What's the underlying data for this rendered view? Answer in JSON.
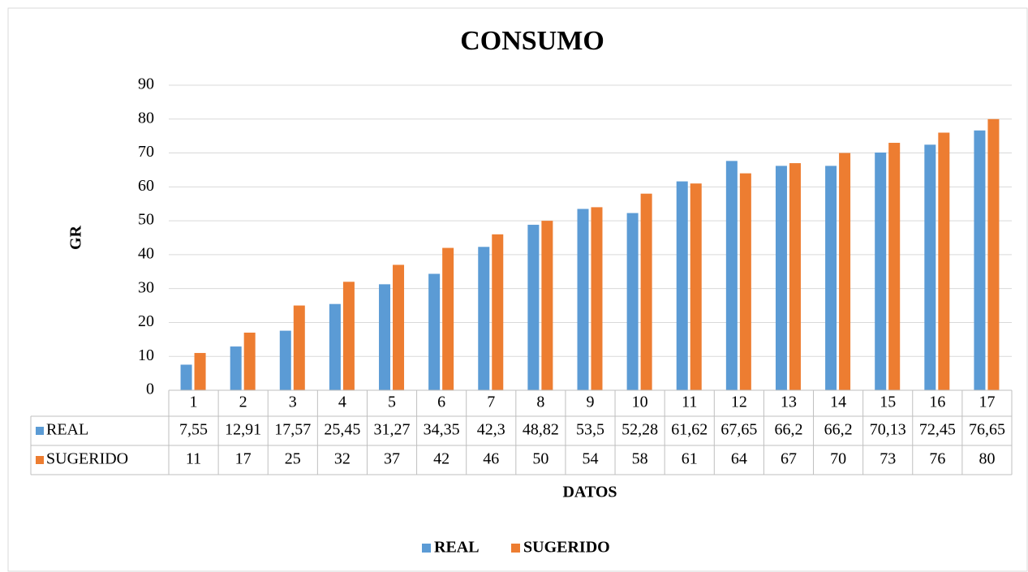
{
  "chart_data": {
    "type": "bar",
    "title": "CONSUMO",
    "x_label": "DATOS",
    "y_label": "GR",
    "categories": [
      "1",
      "2",
      "3",
      "4",
      "5",
      "6",
      "7",
      "8",
      "9",
      "10",
      "11",
      "12",
      "13",
      "14",
      "15",
      "16",
      "17"
    ],
    "series": [
      {
        "name": "REAL",
        "color": "#5b9bd5",
        "values": [
          7.55,
          12.91,
          17.57,
          25.45,
          31.27,
          34.35,
          42.3,
          48.82,
          53.5,
          52.28,
          61.62,
          67.65,
          66.2,
          66.2,
          70.13,
          72.45,
          76.65
        ],
        "value_labels": [
          "7,55",
          "12,91",
          "17,57",
          "25,45",
          "31,27",
          "34,35",
          "42,3",
          "48,82",
          "53,5",
          "52,28",
          "61,62",
          "67,65",
          "66,2",
          "66,2",
          "70,13",
          "72,45",
          "76,65"
        ]
      },
      {
        "name": "SUGERIDO",
        "color": "#ed7d31",
        "values": [
          11,
          17,
          25,
          32,
          37,
          42,
          46,
          50,
          54,
          58,
          61,
          64,
          67,
          70,
          73,
          76,
          80
        ]
      }
    ],
    "ylim": [
      0,
      90
    ],
    "yticks": [
      0,
      10,
      20,
      30,
      40,
      50,
      60,
      70,
      80,
      90
    ],
    "grid": true,
    "legend": "bottom",
    "data_table": true
  }
}
